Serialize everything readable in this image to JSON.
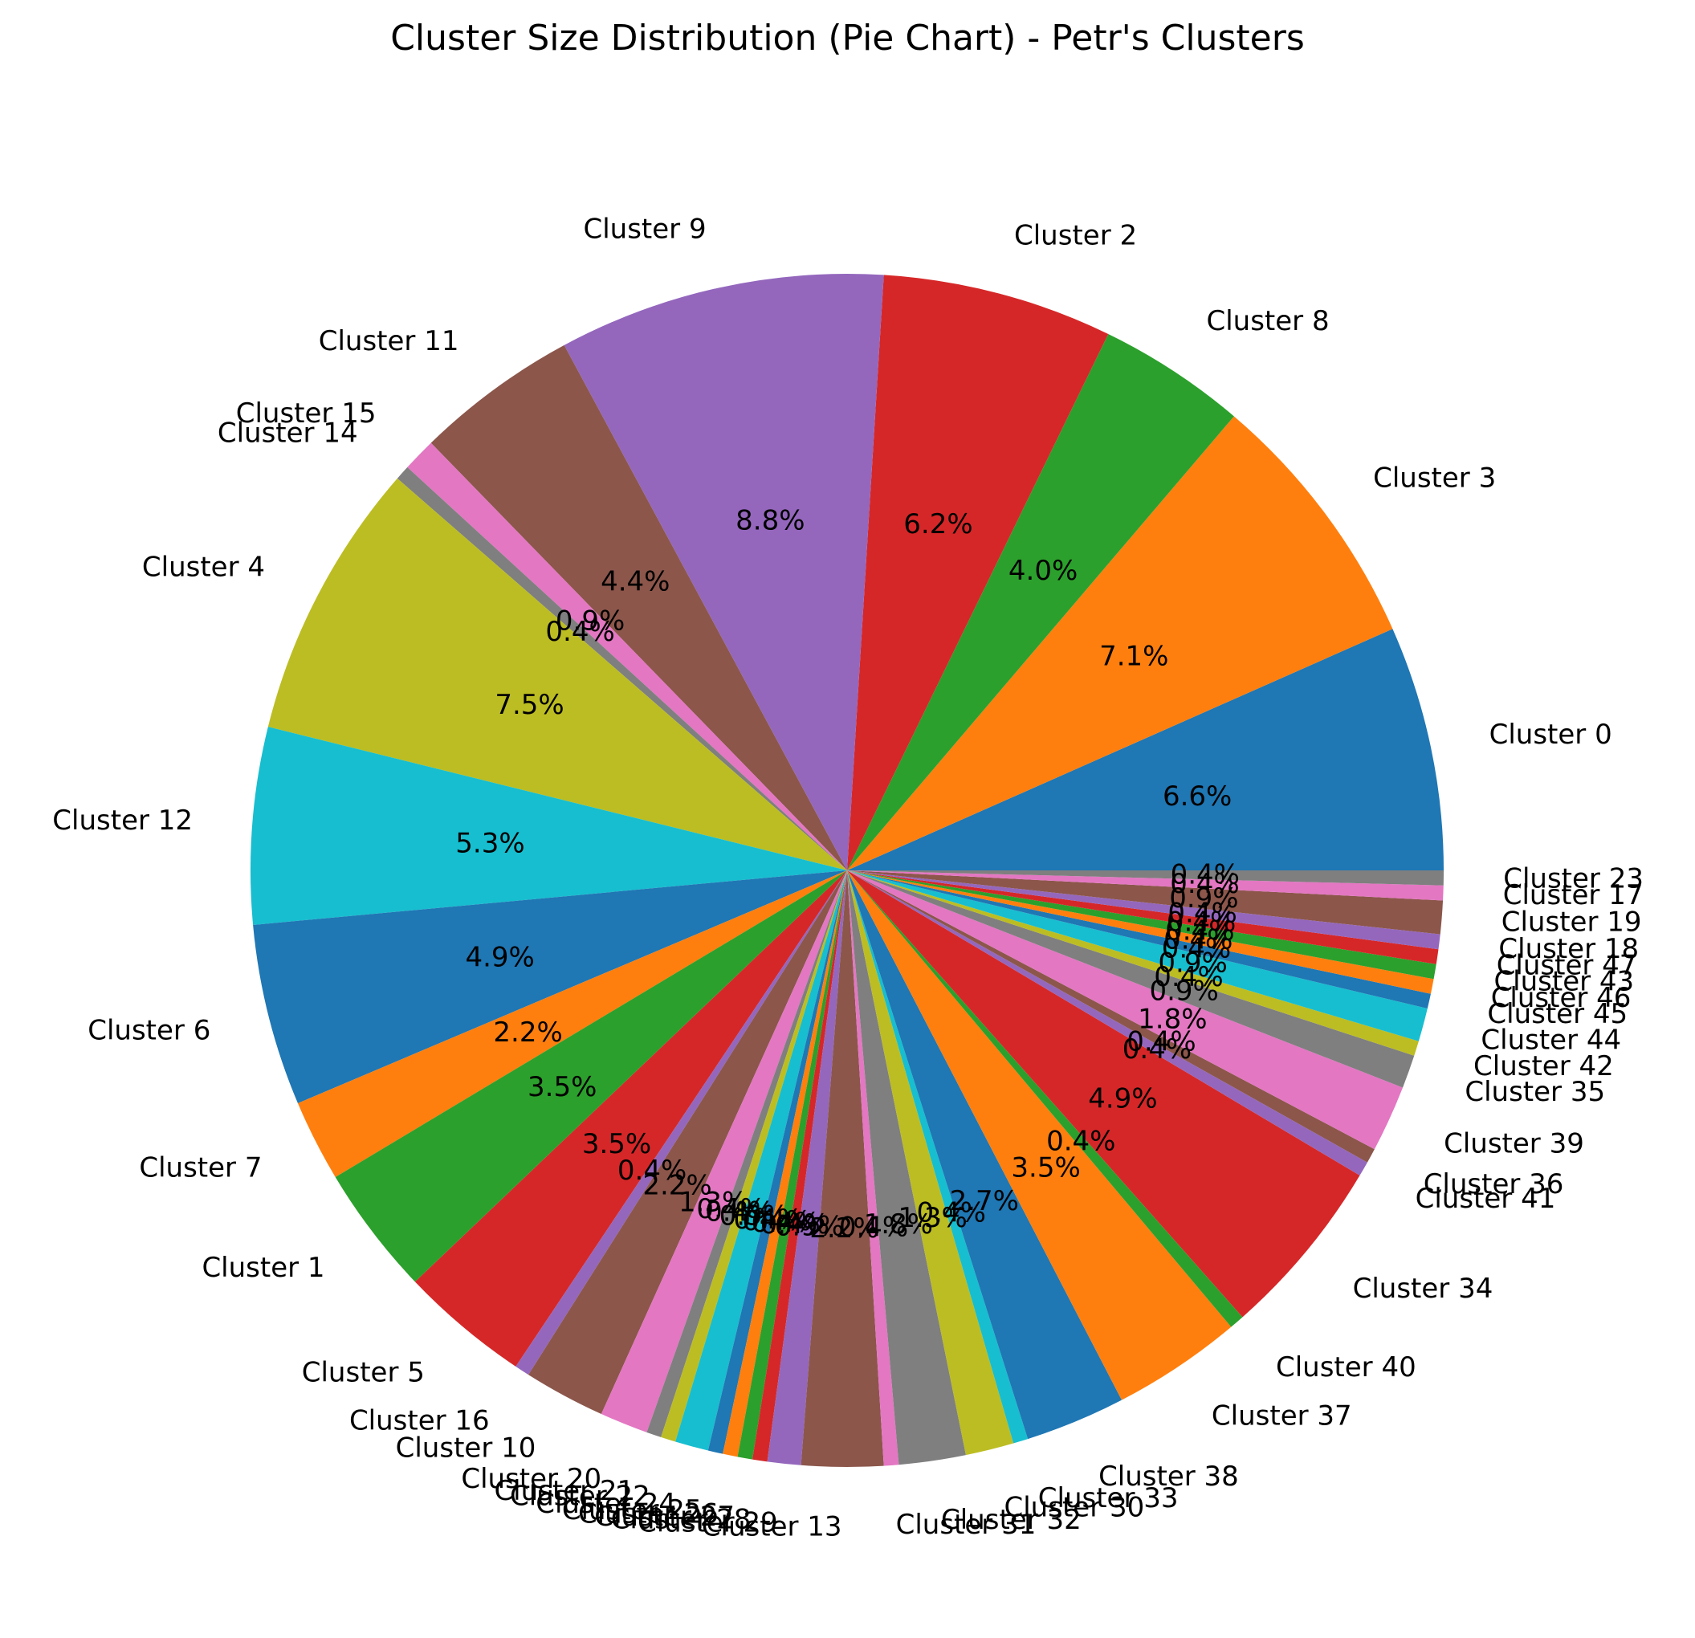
{
  "chart_data": {
    "type": "pie",
    "title": "Cluster Size Distribution (Pie Chart) - Petr's Clusters",
    "start_angle_deg": 0,
    "direction": "counterclockwise",
    "slices": [
      {
        "label": "Cluster 0",
        "value": 6.6,
        "pct_label": "6.6%",
        "color": "#1f77b4"
      },
      {
        "label": "Cluster 3",
        "value": 7.1,
        "pct_label": "7.1%",
        "color": "#ff7f0e"
      },
      {
        "label": "Cluster 8",
        "value": 4.0,
        "pct_label": "4.0%",
        "color": "#2ca02c"
      },
      {
        "label": "Cluster 2",
        "value": 6.2,
        "pct_label": "6.2%",
        "color": "#d62728"
      },
      {
        "label": "Cluster 9",
        "value": 8.8,
        "pct_label": "8.8%",
        "color": "#9467bd"
      },
      {
        "label": "Cluster 11",
        "value": 4.4,
        "pct_label": "4.4%",
        "color": "#8c564b"
      },
      {
        "label": "Cluster 15",
        "value": 0.9,
        "pct_label": "0.9%",
        "color": "#e377c2"
      },
      {
        "label": "Cluster 14",
        "value": 0.4,
        "pct_label": "0.4%",
        "color": "#7f7f7f"
      },
      {
        "label": "Cluster 4",
        "value": 7.5,
        "pct_label": "7.5%",
        "color": "#bcbd22"
      },
      {
        "label": "Cluster 12",
        "value": 5.3,
        "pct_label": "5.3%",
        "color": "#17becf"
      },
      {
        "label": "Cluster 6",
        "value": 4.9,
        "pct_label": "4.9%",
        "color": "#1f77b4"
      },
      {
        "label": "Cluster 7",
        "value": 2.2,
        "pct_label": "2.2%",
        "color": "#ff7f0e"
      },
      {
        "label": "Cluster 1",
        "value": 3.5,
        "pct_label": "3.5%",
        "color": "#2ca02c"
      },
      {
        "label": "Cluster 5",
        "value": 3.5,
        "pct_label": "3.5%",
        "color": "#d62728"
      },
      {
        "label": "Cluster 16",
        "value": 0.4,
        "pct_label": "0.4%",
        "color": "#9467bd"
      },
      {
        "label": "Cluster 10",
        "value": 2.2,
        "pct_label": "2.2%",
        "color": "#8c564b"
      },
      {
        "label": "Cluster 20",
        "value": 1.3,
        "pct_label": "1.3%",
        "color": "#e377c2"
      },
      {
        "label": "Cluster 21",
        "value": 0.4,
        "pct_label": "0.4%",
        "color": "#7f7f7f"
      },
      {
        "label": "Cluster 22",
        "value": 0.4,
        "pct_label": "0.4%",
        "color": "#bcbd22"
      },
      {
        "label": "Cluster 24",
        "value": 0.9,
        "pct_label": "0.9%",
        "color": "#17becf"
      },
      {
        "label": "Cluster 25",
        "value": 0.4,
        "pct_label": "0.4%",
        "color": "#1f77b4"
      },
      {
        "label": "Cluster 26",
        "value": 0.4,
        "pct_label": "0.4%",
        "color": "#ff7f0e"
      },
      {
        "label": "Cluster 27",
        "value": 0.4,
        "pct_label": "0.4%",
        "color": "#2ca02c"
      },
      {
        "label": "Cluster 28",
        "value": 0.4,
        "pct_label": "0.4%",
        "color": "#d62728"
      },
      {
        "label": "Cluster 29",
        "value": 0.9,
        "pct_label": "0.9%",
        "color": "#9467bd"
      },
      {
        "label": "Cluster 13",
        "value": 2.2,
        "pct_label": "2.2%",
        "color": "#8c564b"
      },
      {
        "label": "Cluster 31",
        "value": 0.4,
        "pct_label": "0.4%",
        "color": "#e377c2"
      },
      {
        "label": "Cluster 32",
        "value": 1.8,
        "pct_label": "1.8%",
        "color": "#7f7f7f"
      },
      {
        "label": "Cluster 30",
        "value": 1.3,
        "pct_label": "1.3%",
        "color": "#bcbd22"
      },
      {
        "label": "Cluster 33",
        "value": 0.4,
        "pct_label": "0.4%",
        "color": "#17becf"
      },
      {
        "label": "Cluster 38",
        "value": 2.7,
        "pct_label": "2.7%",
        "color": "#1f77b4"
      },
      {
        "label": "Cluster 37",
        "value": 3.5,
        "pct_label": "3.5%",
        "color": "#ff7f0e"
      },
      {
        "label": "Cluster 40",
        "value": 0.4,
        "pct_label": "0.4%",
        "color": "#2ca02c"
      },
      {
        "label": "Cluster 34",
        "value": 4.9,
        "pct_label": "4.9%",
        "color": "#d62728"
      },
      {
        "label": "Cluster 41",
        "value": 0.4,
        "pct_label": "0.4%",
        "color": "#9467bd"
      },
      {
        "label": "Cluster 36",
        "value": 0.4,
        "pct_label": "0.4%",
        "color": "#8c564b"
      },
      {
        "label": "Cluster 39",
        "value": 1.8,
        "pct_label": "1.8%",
        "color": "#e377c2"
      },
      {
        "label": "Cluster 35",
        "value": 0.9,
        "pct_label": "0.9%",
        "color": "#7f7f7f"
      },
      {
        "label": "Cluster 42",
        "value": 0.4,
        "pct_label": "0.4%",
        "color": "#bcbd22"
      },
      {
        "label": "Cluster 44",
        "value": 0.9,
        "pct_label": "0.9%",
        "color": "#17becf"
      },
      {
        "label": "Cluster 45",
        "value": 0.4,
        "pct_label": "0.4%",
        "color": "#1f77b4"
      },
      {
        "label": "Cluster 46",
        "value": 0.4,
        "pct_label": "0.4%",
        "color": "#ff7f0e"
      },
      {
        "label": "Cluster 43",
        "value": 0.4,
        "pct_label": "0.4%",
        "color": "#2ca02c"
      },
      {
        "label": "Cluster 47",
        "value": 0.4,
        "pct_label": "0.4%",
        "color": "#d62728"
      },
      {
        "label": "Cluster 18",
        "value": 0.4,
        "pct_label": "0.4%",
        "color": "#9467bd"
      },
      {
        "label": "Cluster 19",
        "value": 0.9,
        "pct_label": "0.9%",
        "color": "#8c564b"
      },
      {
        "label": "Cluster 17",
        "value": 0.4,
        "pct_label": "0.4%",
        "color": "#e377c2"
      },
      {
        "label": "Cluster 23",
        "value": 0.4,
        "pct_label": "0.4%",
        "color": "#7f7f7f"
      }
    ]
  }
}
